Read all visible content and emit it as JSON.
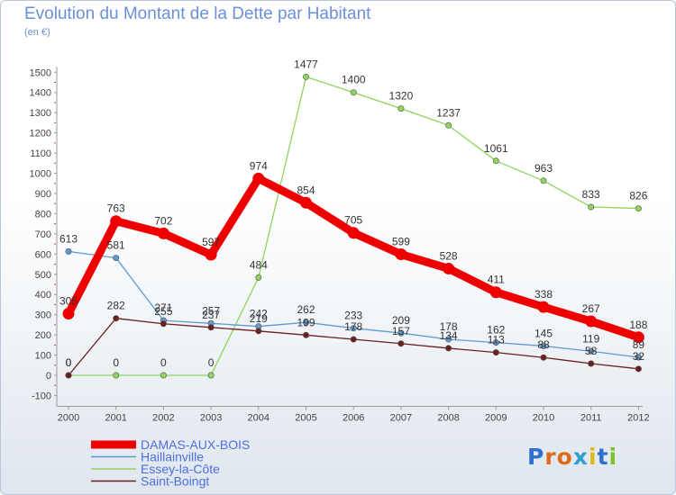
{
  "title": "Evolution du Montant de la Dette par Habitant",
  "subtitle": "(en €)",
  "logo": "Proxiti",
  "chart_data": {
    "type": "line",
    "title": "Evolution du Montant de la Dette par Habitant",
    "subtitle": "(en €)",
    "x": [
      "2000",
      "2001",
      "2002",
      "2003",
      "2004",
      "2005",
      "2006",
      "2007",
      "2008",
      "2009",
      "2010",
      "2011",
      "2012"
    ],
    "y_ticks": [
      "-100",
      "0",
      "100",
      "200",
      "300",
      "400",
      "500",
      "600",
      "700",
      "800",
      "900",
      "1000",
      "1100",
      "1200",
      "1300",
      "1400",
      "1500"
    ],
    "ylim": [
      -100,
      1500
    ],
    "grid": false,
    "legend_position": "bottom-left",
    "series": [
      {
        "name": "DAMAS-AUX-BOIS",
        "color": "#ee0000",
        "values": [
          305,
          763,
          702,
          597,
          974,
          854,
          705,
          599,
          528,
          411,
          338,
          267,
          188
        ],
        "labels": [
          "305",
          "763",
          "702",
          "597",
          "974",
          "854",
          "705",
          "599",
          "528",
          "411",
          "338",
          "267",
          "188"
        ]
      },
      {
        "name": "Haillainville",
        "color": "#5f9bd0",
        "values": [
          613,
          581,
          271,
          257,
          242,
          262,
          233,
          209,
          178,
          162,
          145,
          119,
          89
        ],
        "labels": [
          "613",
          "581",
          "271",
          "257",
          "242",
          "262",
          "233",
          "209",
          "178",
          "162",
          "145",
          "119",
          "89"
        ]
      },
      {
        "name": "Essey-la-Côte",
        "color": "#8fd45c",
        "values": [
          0,
          0,
          0,
          0,
          484,
          1477,
          1400,
          1320,
          1237,
          1061,
          963,
          833,
          826
        ],
        "labels": [
          "0",
          "0",
          "0",
          "0",
          "484",
          "1477",
          "1400",
          "1320",
          "1237",
          "1061",
          "963",
          "833",
          "826"
        ]
      },
      {
        "name": "Saint-Boingt",
        "color": "#6b1f1f",
        "values": [
          0,
          282,
          255,
          237,
          219,
          199,
          178,
          157,
          134,
          113,
          88,
          58,
          32
        ],
        "labels": [
          "0",
          "282",
          "255",
          "237",
          "219",
          "199",
          "178",
          "157",
          "134",
          "113",
          "88",
          "58",
          "32"
        ]
      }
    ]
  }
}
